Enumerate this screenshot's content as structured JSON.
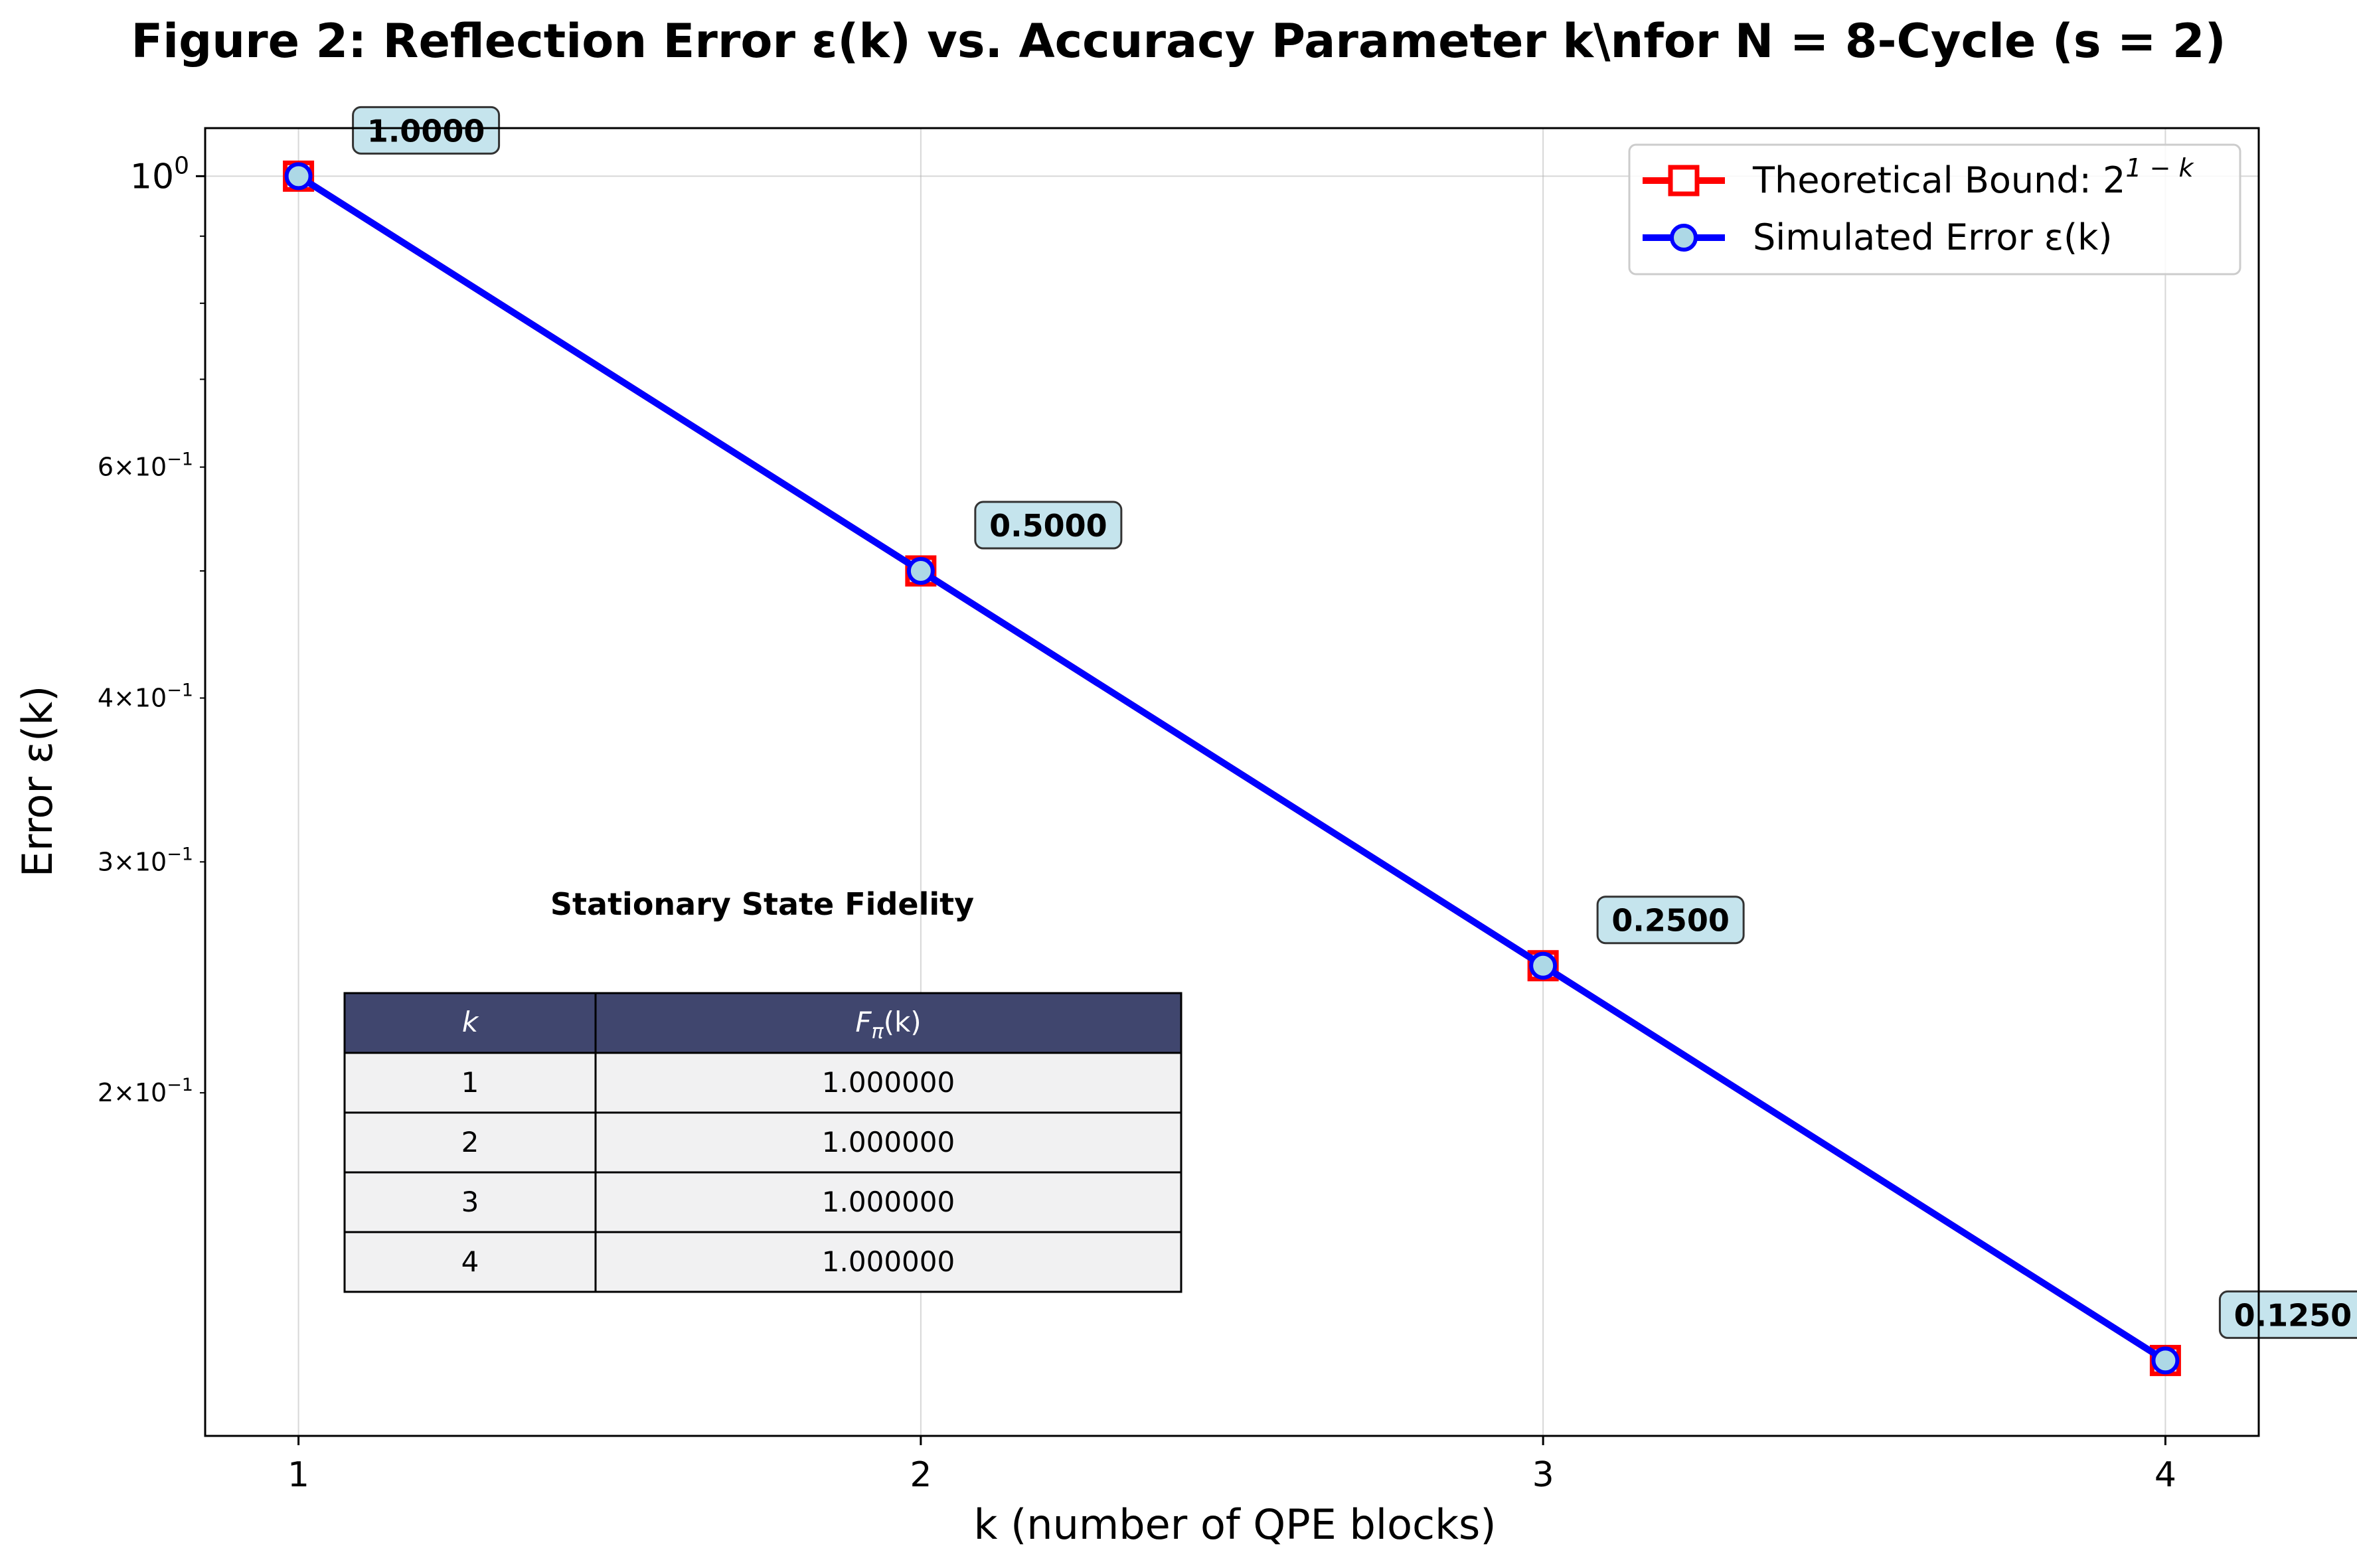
{
  "chart_data": {
    "type": "line",
    "title": "Figure 2: Reflection Error ε(k) vs. Accuracy Parameter k\\nfor N = 8-Cycle (s = 2)",
    "xlabel": "k (number of QPE blocks)",
    "ylabel": "Error ε(k)",
    "x": [
      1,
      2,
      3,
      4
    ],
    "xlim": [
      0.85,
      4.15
    ],
    "ylim": [
      0.1095,
      1.088
    ],
    "yscale": "log",
    "grid": true,
    "x_ticks": [
      "1",
      "2",
      "3",
      "4"
    ],
    "y_ticks": [
      {
        "value": 1.0,
        "base": "10",
        "exp": "0",
        "major": true
      },
      {
        "value": 0.6,
        "base": "6×10",
        "exp": "−1",
        "major": false
      },
      {
        "value": 0.4,
        "base": "4×10",
        "exp": "−1",
        "major": false
      },
      {
        "value": 0.3,
        "base": "3×10",
        "exp": "−1",
        "major": false
      },
      {
        "value": 0.2,
        "base": "2×10",
        "exp": "−1",
        "major": false
      }
    ],
    "y_minor_unlabeled": [
      0.9,
      0.8,
      0.7,
      0.5
    ],
    "series": [
      {
        "name": "Theoretical Bound: 2^(1−k)",
        "legend_main": "Theoretical Bound: 2",
        "legend_sup": "1 − k",
        "values": [
          1.0,
          0.5,
          0.25,
          0.125
        ],
        "color": "#ff0000",
        "marker": "square"
      },
      {
        "name": "Simulated Error ε(k)",
        "legend_main": "Simulated Error ε(k)",
        "values": [
          1.0,
          0.5,
          0.25,
          0.125
        ],
        "color": "#0000ff",
        "marker": "circle",
        "marker_fill": "#add8e6"
      }
    ],
    "legend_position": "upper-right",
    "annotations": [
      "1.0000",
      "0.5000",
      "0.2500",
      "0.1250"
    ],
    "annotation_box_color": "#add8e6"
  },
  "table": {
    "title": "Stationary State Fidelity",
    "columns": [
      "k",
      "F_π(k)"
    ],
    "col_main": [
      "k",
      "F"
    ],
    "col_sub": [
      "",
      "π"
    ],
    "col_tail": [
      "",
      "(k)"
    ],
    "rows": [
      [
        "1",
        "1.000000"
      ],
      [
        "2",
        "1.000000"
      ],
      [
        "3",
        "1.000000"
      ],
      [
        "4",
        "1.000000"
      ]
    ],
    "header_color": "#40466e",
    "row_color": "#f1f1f2"
  }
}
